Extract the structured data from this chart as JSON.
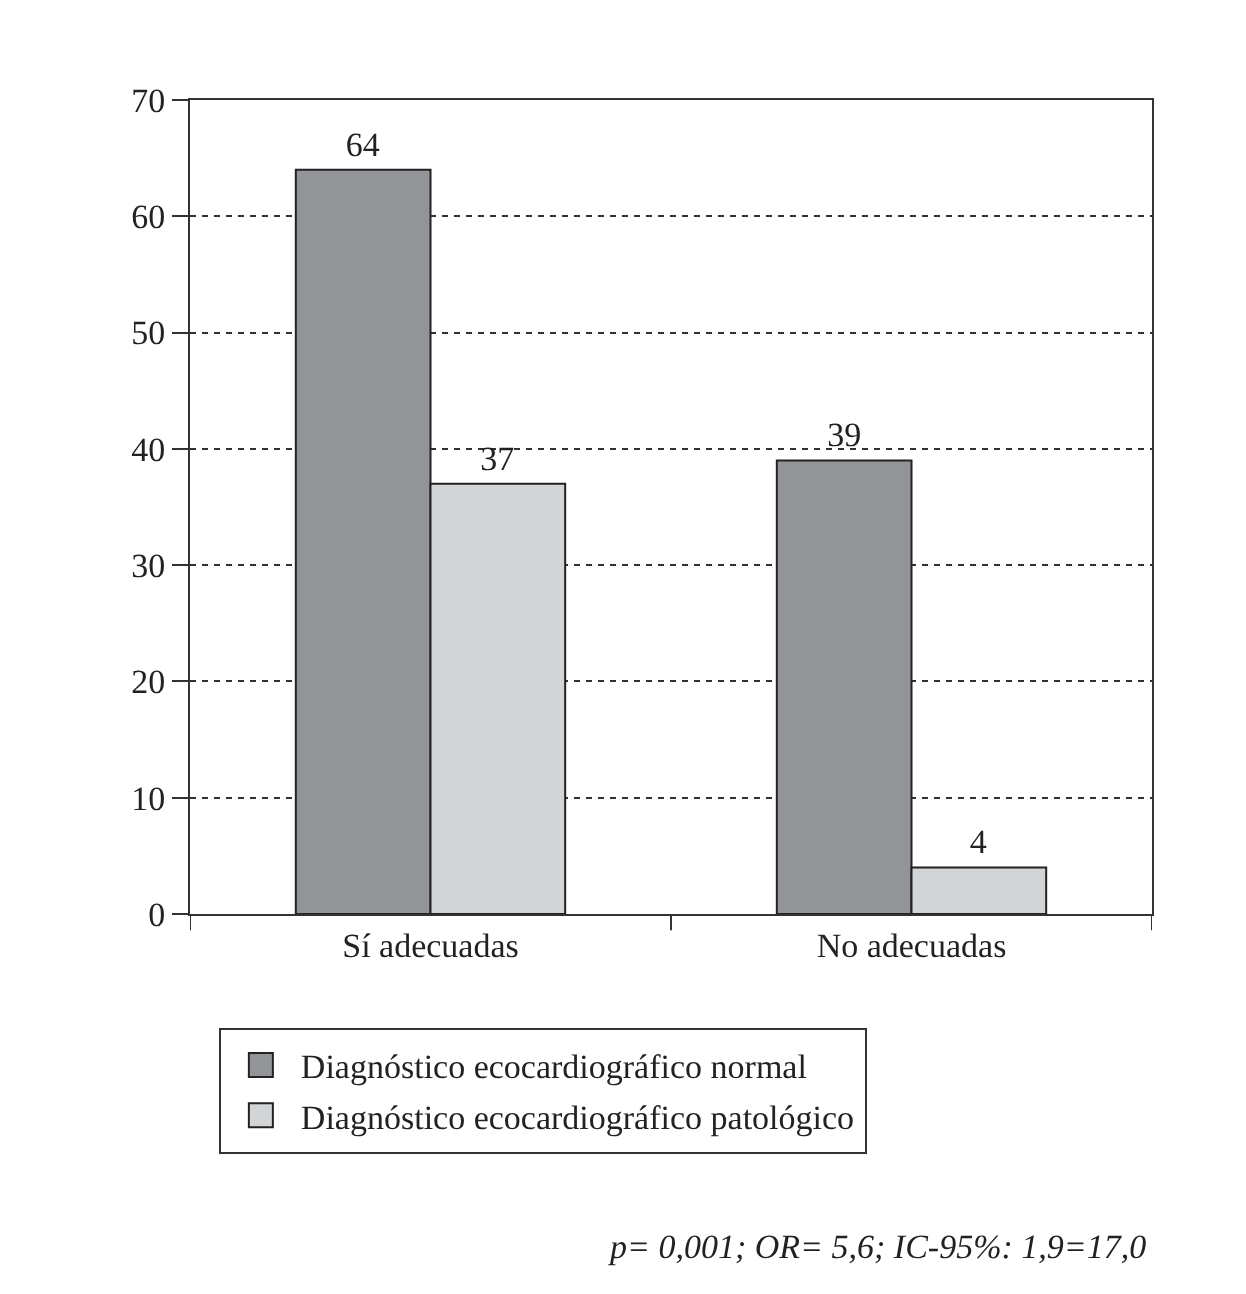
{
  "chart_data": {
    "type": "bar",
    "categories": [
      "Sí adecuadas",
      "No adecuadas"
    ],
    "series": [
      {
        "name": "Diagnóstico ecocardiográfico normal",
        "color": "#939498",
        "values": [
          64,
          39
        ]
      },
      {
        "name": "Diagnóstico ecocardiográfico patológico",
        "color": "#d3d4d6",
        "values": [
          37,
          4
        ]
      }
    ],
    "ylim": [
      0,
      70
    ],
    "yticks": [
      0,
      10,
      20,
      30,
      40,
      50,
      60,
      70
    ],
    "grid": "y",
    "legend": "bottom left",
    "data_labels": true,
    "annotations": [
      "p= 0,001; OR= 5,6; IC-95%: 1,9=17,0"
    ]
  }
}
